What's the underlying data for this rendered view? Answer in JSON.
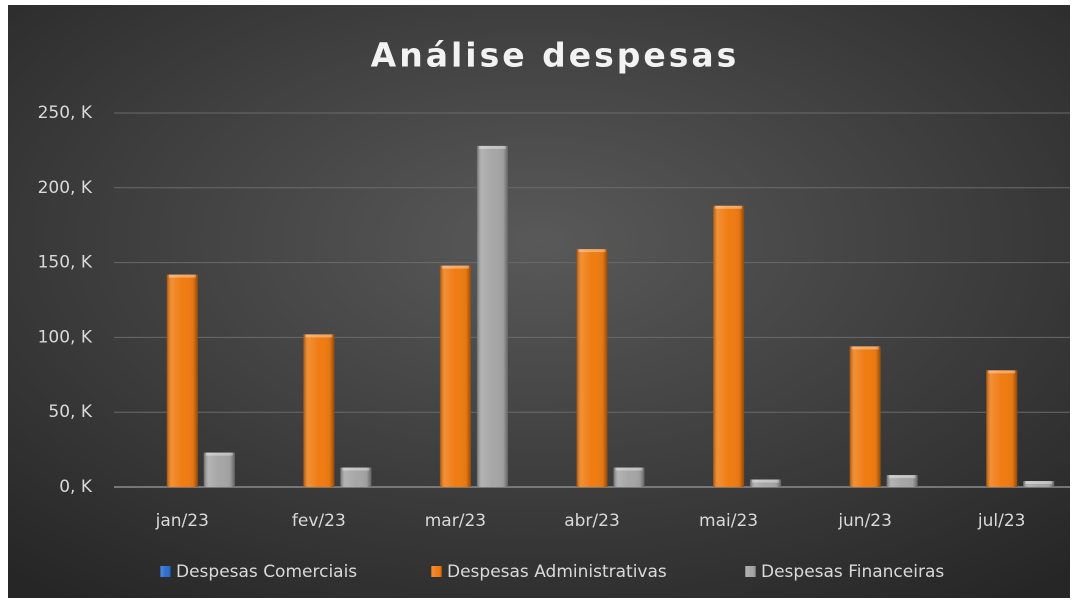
{
  "chart_data": {
    "type": "bar",
    "title": "Análise despesas",
    "categories": [
      "jan/23",
      "fev/23",
      "mar/23",
      "abr/23",
      "mai/23",
      "jun/23",
      "jul/23"
    ],
    "series": [
      {
        "name": "Despesas Comerciais",
        "color": "#2e6fd0",
        "values": [
          0,
          0,
          0,
          0,
          0,
          0,
          0
        ]
      },
      {
        "name": "Despesas Administrativas",
        "color": "#f07c12",
        "values": [
          142,
          102,
          148,
          159,
          188,
          94,
          78
        ]
      },
      {
        "name": "Despesas Financeiras",
        "color": "#a6a6a6",
        "values": [
          23,
          13,
          228,
          13,
          5,
          8,
          4
        ]
      }
    ],
    "ylim": [
      0,
      250
    ],
    "yticks": [
      {
        "value": 0,
        "label": "0, K"
      },
      {
        "value": 50,
        "label": "50, K"
      },
      {
        "value": 100,
        "label": "100, K"
      },
      {
        "value": 150,
        "label": "150, K"
      },
      {
        "value": 200,
        "label": "200, K"
      },
      {
        "value": 250,
        "label": "250, K"
      }
    ],
    "grid": true,
    "legend": "bottom"
  }
}
